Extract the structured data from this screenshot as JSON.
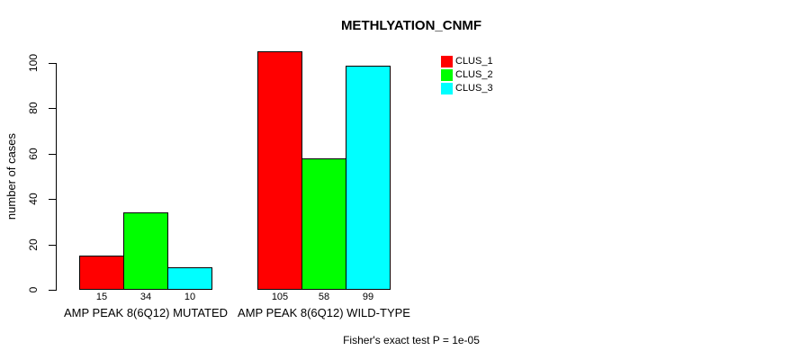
{
  "chart_data": {
    "type": "bar",
    "title": "METHLYATION_CNMF",
    "ylabel": "number of cases",
    "ylim": [
      0,
      110
    ],
    "yticks": [
      0,
      20,
      40,
      60,
      80,
      100
    ],
    "grid": false,
    "legend_position": "top-right",
    "categories": [
      "AMP PEAK 8(6Q12) MUTATED",
      "AMP PEAK 8(6Q12) WILD-TYPE"
    ],
    "series": [
      {
        "name": "CLUS_1",
        "color": "#ff0000",
        "values": [
          15,
          105
        ]
      },
      {
        "name": "CLUS_2",
        "color": "#00ff00",
        "values": [
          34,
          58
        ]
      },
      {
        "name": "CLUS_3",
        "color": "#00ffff",
        "values": [
          10,
          99
        ]
      }
    ],
    "footnote": "Fisher's exact test P = 1e-05"
  }
}
